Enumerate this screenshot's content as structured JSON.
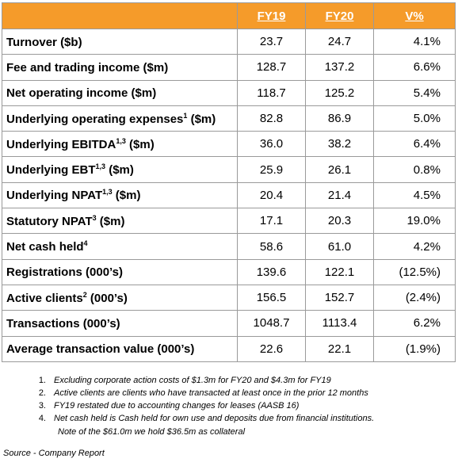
{
  "header": {
    "col1": "FY19",
    "col2": "FY20",
    "col3": "V%"
  },
  "rows": [
    {
      "label": "Turnover ($b)",
      "sup": "",
      "label_suffix": "",
      "fy19": "23.7",
      "fy20": "24.7",
      "v": "4.1%"
    },
    {
      "label": "Fee and trading income ($m)",
      "sup": "",
      "label_suffix": "",
      "fy19": "128.7",
      "fy20": "137.2",
      "v": "6.6%"
    },
    {
      "label": "Net operating income ($m)",
      "sup": "",
      "label_suffix": "",
      "fy19": "118.7",
      "fy20": "125.2",
      "v": "5.4%"
    },
    {
      "label": "Underlying operating expenses",
      "sup": "1",
      "label_suffix": " ($m)",
      "fy19": "82.8",
      "fy20": "86.9",
      "v": "5.0%"
    },
    {
      "label": "Underlying EBITDA",
      "sup": "1,3",
      "label_suffix": " ($m)",
      "fy19": "36.0",
      "fy20": "38.2",
      "v": "6.4%"
    },
    {
      "label": "Underlying EBT",
      "sup": "1,3",
      "label_suffix": " ($m)",
      "fy19": "25.9",
      "fy20": "26.1",
      "v": "0.8%"
    },
    {
      "label": "Underlying NPAT",
      "sup": "1,3",
      "label_suffix": " ($m)",
      "fy19": "20.4",
      "fy20": "21.4",
      "v": "4.5%"
    },
    {
      "label": "Statutory NPAT",
      "sup": "3",
      "label_suffix": " ($m)",
      "fy19": "17.1",
      "fy20": "20.3",
      "v": "19.0%"
    },
    {
      "label": "Net cash held",
      "sup": "4",
      "label_suffix": "",
      "fy19": "58.6",
      "fy20": "61.0",
      "v": "4.2%"
    },
    {
      "label": "Registrations (000’s)",
      "sup": "",
      "label_suffix": "",
      "fy19": "139.6",
      "fy20": "122.1",
      "v": "(12.5%)"
    },
    {
      "label": "Active clients",
      "sup": "2",
      "label_suffix": " (000’s)",
      "fy19": "156.5",
      "fy20": "152.7",
      "v": "(2.4%)"
    },
    {
      "label": "Transactions (000’s)",
      "sup": "",
      "label_suffix": "",
      "fy19": "1048.7",
      "fy20": "1113.4",
      "v": "6.2%"
    },
    {
      "label": "Average transaction value (000’s)",
      "sup": "",
      "label_suffix": "",
      "fy19": "22.6",
      "fy20": "22.1",
      "v": "(1.9%)"
    }
  ],
  "notes": [
    {
      "num": "1.",
      "text": "Excluding corporate action costs of $1.3m for FY20 and $4.3m for FY19"
    },
    {
      "num": "2.",
      "text": "Active clients are clients who have transacted at least once in the prior 12 months"
    },
    {
      "num": "3.",
      "text": "FY19 restated due to accounting changes for leases (AASB 16)"
    },
    {
      "num": "4.",
      "text": "Net cash held is Cash held for own use and deposits due from financial institutions."
    }
  ],
  "note_continuation": "Note of the $61.0m we hold $36.5m as collateral",
  "source": "Source - Company Report"
}
